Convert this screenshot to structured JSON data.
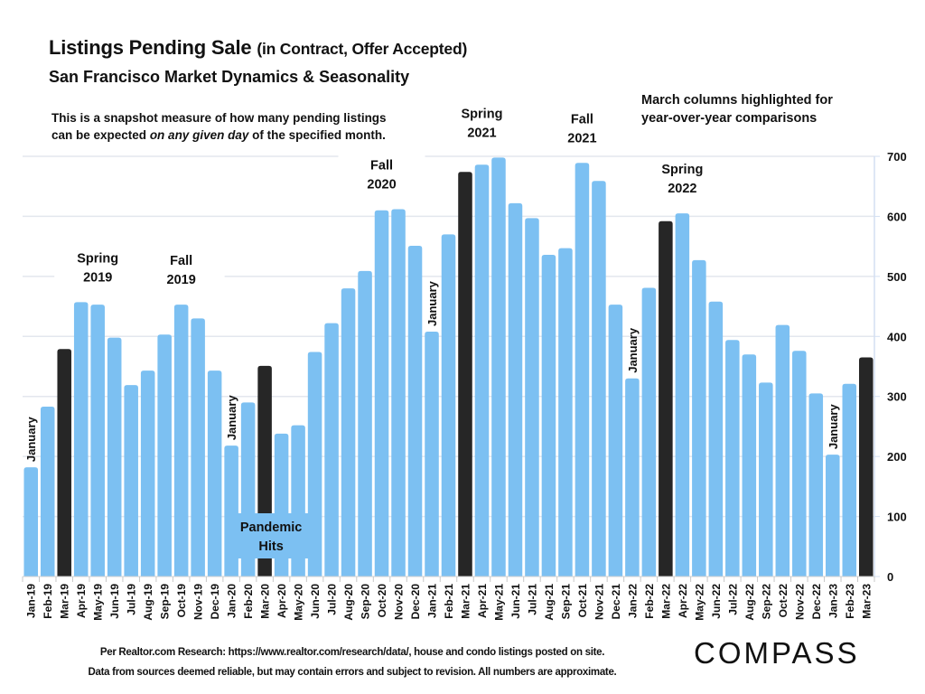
{
  "header": {
    "title_main": "Listings Pending Sale",
    "title_paren": "(in Contract, Offer Accepted)",
    "subtitle": "San Francisco Market Dynamics & Seasonality",
    "desc_line1": "This is a snapshot measure of how many pending listings",
    "desc_line2_pre": "can be expected ",
    "desc_line2_em": "on any given day",
    "desc_line2_post": " of the specified month.",
    "note_line1": "March columns highlighted for",
    "note_line2": "year-over-year comparisons"
  },
  "footer": {
    "line1": "Per Realtor.com Research:  https://www.realtor.com/research/data/, house and condo listings posted on site.",
    "line2": "Data from sources deemed reliable, but may contain errors and subject to revision. All numbers are approximate.",
    "logo": "COMPASS"
  },
  "colors": {
    "bar": "#7cc0f2",
    "highlight": "#262626",
    "grid": "#e3e7ee",
    "axis": "#d3dff2"
  },
  "chart_data": {
    "type": "bar",
    "title": "Listings Pending Sale (in Contract, Offer Accepted)",
    "subtitle": "San Francisco Market Dynamics & Seasonality",
    "xlabel": "",
    "ylabel": "",
    "ylim": [
      0,
      700
    ],
    "yticks": [
      0,
      100,
      200,
      300,
      400,
      500,
      600,
      700
    ],
    "y_axis_side": "right",
    "grid": true,
    "legend": "none",
    "highlight_rule": "March columns highlighted",
    "categories": [
      "Jan-19",
      "Feb-19",
      "Mar-19",
      "Apr-19",
      "May-19",
      "Jun-19",
      "Jul-19",
      "Aug-19",
      "Sep-19",
      "Oct-19",
      "Nov-19",
      "Dec-19",
      "Jan-20",
      "Feb-20",
      "Mar-20",
      "Apr-20",
      "May-20",
      "Jun-20",
      "Jul-20",
      "Aug-20",
      "Sep-20",
      "Oct-20",
      "Nov-20",
      "Dec-20",
      "Jan-21",
      "Feb-21",
      "Mar-21",
      "Apr-21",
      "May-21",
      "Jun-21",
      "Jul-21",
      "Aug-21",
      "Sep-21",
      "Oct-21",
      "Nov-21",
      "Dec-21",
      "Jan-22",
      "Feb-22",
      "Mar-22",
      "Apr-22",
      "May-22",
      "Jun-22",
      "Jul-22",
      "Aug-22",
      "Sep-22",
      "Oct-22",
      "Nov-22",
      "Dec-22",
      "Jan-23",
      "Feb-23",
      "Mar-23"
    ],
    "values": [
      182,
      283,
      379,
      457,
      453,
      398,
      319,
      343,
      403,
      453,
      430,
      343,
      218,
      290,
      351,
      238,
      252,
      374,
      422,
      480,
      509,
      610,
      612,
      551,
      408,
      570,
      674,
      686,
      698,
      622,
      597,
      536,
      547,
      689,
      659,
      453,
      330,
      481,
      592,
      605,
      527,
      458,
      394,
      370,
      323,
      419,
      376,
      305,
      203,
      321,
      365
    ],
    "highlighted": [
      "Mar-19",
      "Mar-20",
      "Mar-21",
      "Mar-22",
      "Mar-23"
    ],
    "annotations": [
      {
        "text": "January",
        "category": "Jan-19",
        "rotated": true
      },
      {
        "text": "Spring\n2019",
        "category": "May-19"
      },
      {
        "text": "Fall\n2019",
        "category": "Oct-19"
      },
      {
        "text": "January",
        "category": "Jan-20",
        "rotated": true
      },
      {
        "text": "Pandemic\nHits",
        "category": "Mar-20"
      },
      {
        "text": "Fall\n2020",
        "category": "Oct-20"
      },
      {
        "text": "January",
        "category": "Jan-21",
        "rotated": true
      },
      {
        "text": "Spring\n2021",
        "category": "Apr-21"
      },
      {
        "text": "Fall\n2021",
        "category": "Oct-21"
      },
      {
        "text": "January",
        "category": "Jan-22",
        "rotated": true
      },
      {
        "text": "Spring\n2022",
        "category": "Apr-22"
      },
      {
        "text": "January",
        "category": "Jan-23",
        "rotated": true
      }
    ]
  }
}
